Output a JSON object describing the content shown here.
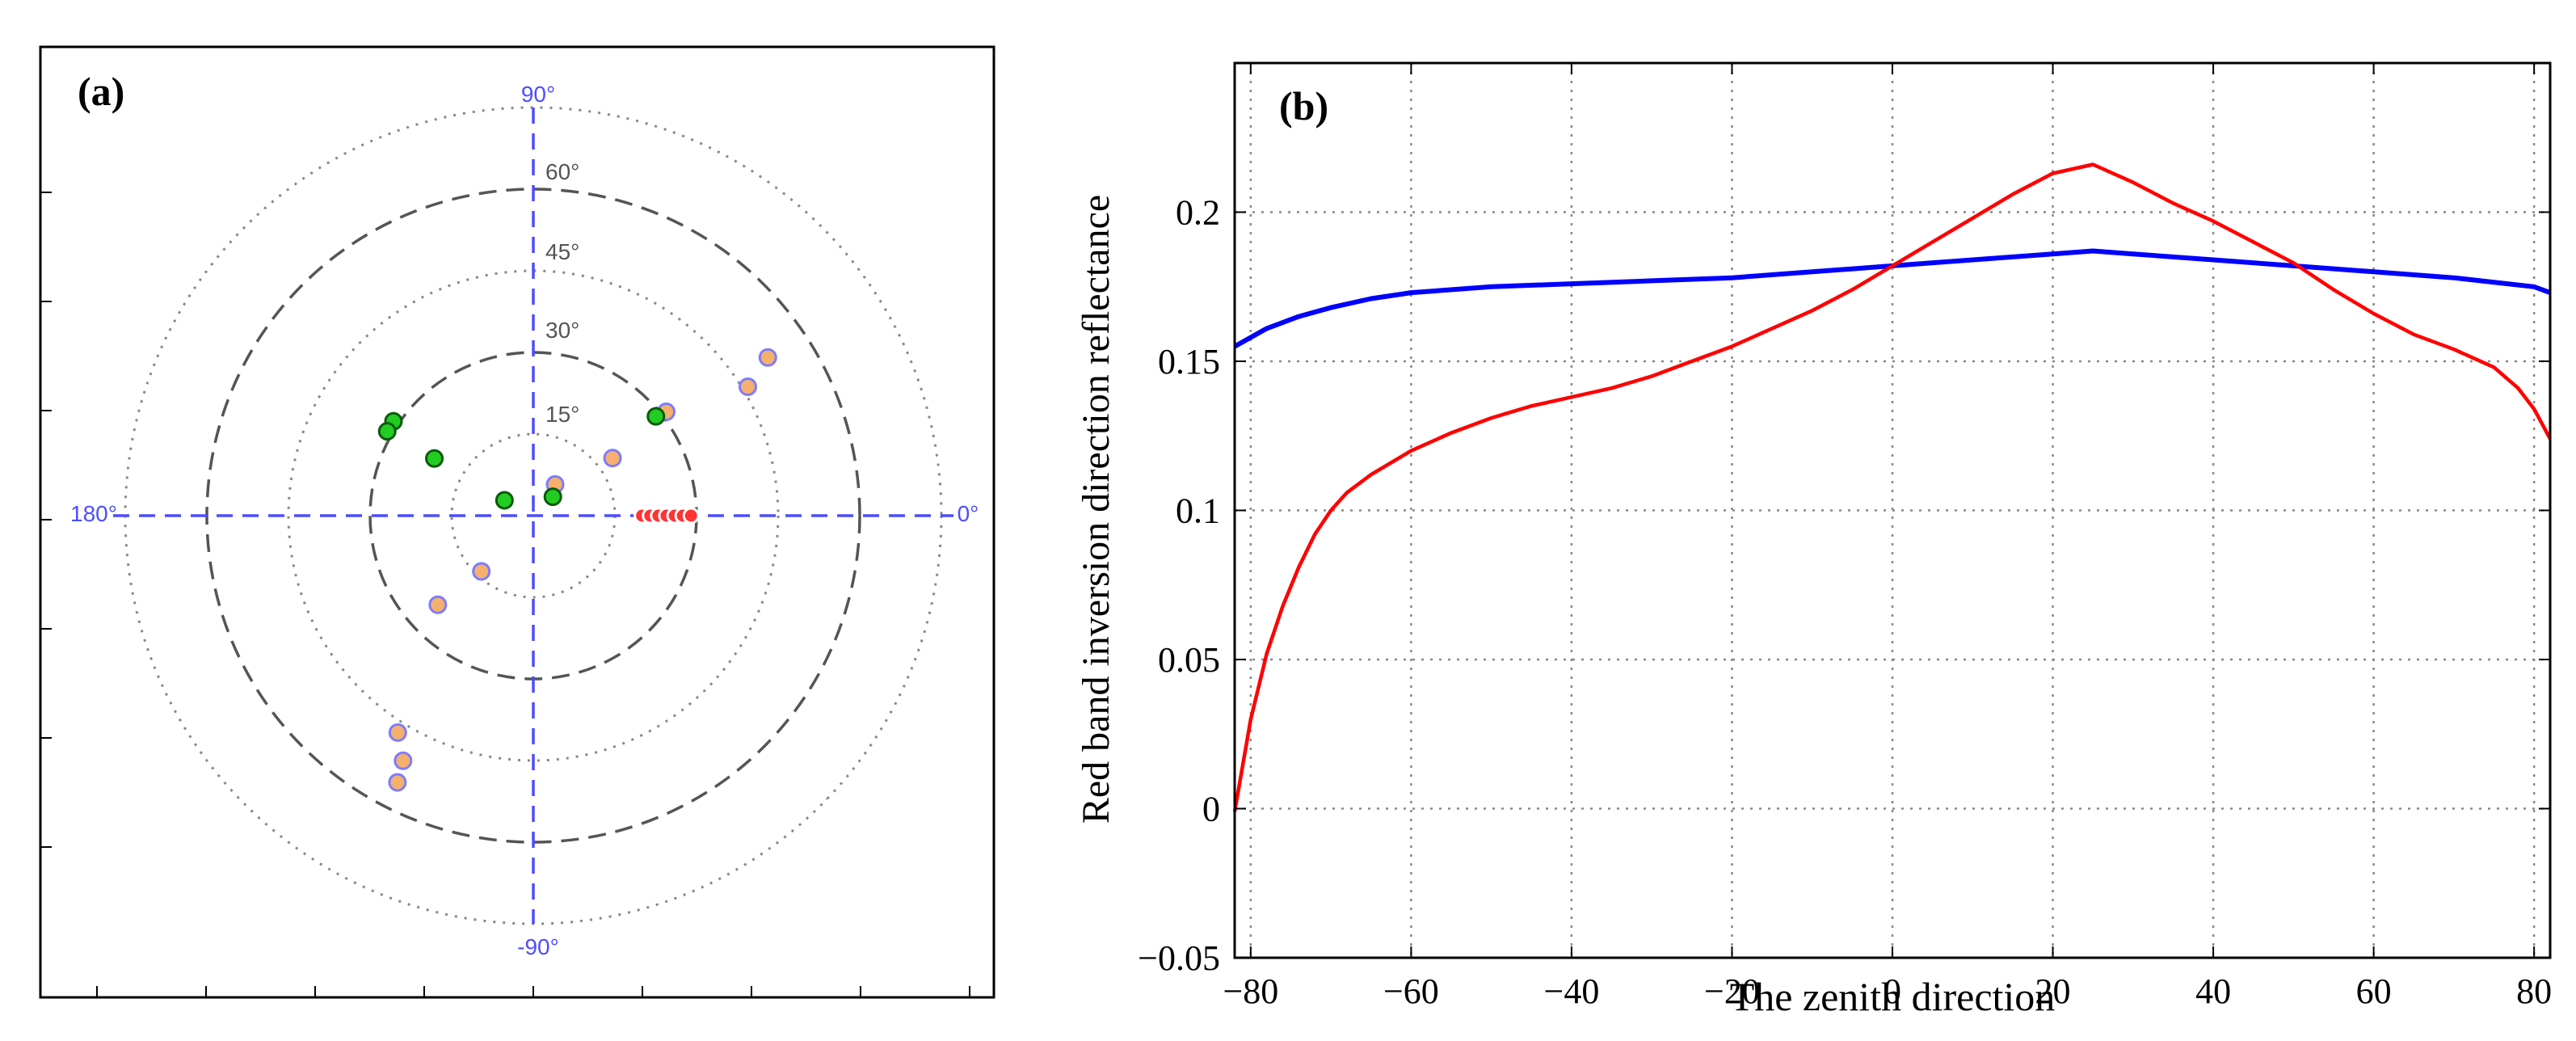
{
  "chart_data": [
    {
      "type": "scatter",
      "subtype": "polar",
      "panel_label": "(a)",
      "grid": true,
      "axis_labels": {
        "top": "90°",
        "left": "180°",
        "right": "0°",
        "bottom": "-90°"
      },
      "ring_labels": [
        {
          "text": "15°",
          "zenith": 15
        },
        {
          "text": "30°",
          "zenith": 30
        },
        {
          "text": "45°",
          "zenith": 45
        },
        {
          "text": "60°",
          "zenith": 60
        }
      ],
      "rings": [
        {
          "zenith": 15,
          "style": "dotted"
        },
        {
          "zenith": 30,
          "style": "dashed"
        },
        {
          "zenith": 45,
          "style": "dotted"
        },
        {
          "zenith": 60,
          "style": "dashed"
        },
        {
          "zenith": 75,
          "style": "dotted"
        }
      ],
      "colors": {
        "axis": "#4d4dff",
        "orange": "#f5b06e",
        "orange_edge": "#7c7cff",
        "green": "#22cc22",
        "red": "#ff3333"
      },
      "series": [
        {
          "name": "orange",
          "points": [
            {
              "azimuth": 34,
              "zenith": 52
            },
            {
              "azimuth": 31,
              "zenith": 46
            },
            {
              "azimuth": 38,
              "zenith": 31
            },
            {
              "azimuth": 36,
              "zenith": 18
            },
            {
              "azimuth": 55,
              "zenith": 7
            },
            {
              "azimuth": -133,
              "zenith": 14
            },
            {
              "azimuth": -137,
              "zenith": 24
            },
            {
              "azimuth": -122,
              "zenith": 47
            },
            {
              "azimuth": -118,
              "zenith": 51
            },
            {
              "azimuth": -117,
              "zenith": 55
            }
          ]
        },
        {
          "name": "green",
          "points": [
            {
              "azimuth": 146,
              "zenith": 31
            },
            {
              "azimuth": 150,
              "zenith": 31
            },
            {
              "azimuth": 150,
              "zenith": 21
            },
            {
              "azimuth": 152,
              "zenith": 6
            },
            {
              "azimuth": 44,
              "zenith": 5
            },
            {
              "azimuth": 39,
              "zenith": 29
            }
          ]
        },
        {
          "name": "red",
          "points": [
            {
              "azimuth": 0,
              "zenith": 20
            },
            {
              "azimuth": 0,
              "zenith": 21.5
            },
            {
              "azimuth": 0,
              "zenith": 23
            },
            {
              "azimuth": 0,
              "zenith": 24.5
            },
            {
              "azimuth": 0,
              "zenith": 26
            },
            {
              "azimuth": 0,
              "zenith": 27.5
            },
            {
              "azimuth": 0,
              "zenith": 29
            }
          ]
        }
      ]
    },
    {
      "type": "line",
      "panel_label": "(b)",
      "xlabel": "The zenith direction",
      "ylabel": "Red band inversion direction reflectance",
      "xlim": [
        -82,
        82
      ],
      "ylim": [
        -0.05,
        0.25
      ],
      "grid": true,
      "xticks": [
        -80,
        -60,
        -40,
        -20,
        0,
        20,
        40,
        60,
        80
      ],
      "xtick_labels": [
        "−80",
        "−60",
        "−40",
        "−20",
        "0",
        "20",
        "40",
        "60",
        "80"
      ],
      "yticks": [
        -0.05,
        0,
        0.05,
        0.1,
        0.15,
        0.2
      ],
      "ytick_labels": [
        "−0.05",
        "0",
        "0.05",
        "0.1",
        "0.15",
        "0.2"
      ],
      "series": [
        {
          "name": "blue",
          "color": "#0000ff",
          "x": [
            -82,
            -78,
            -74,
            -70,
            -65,
            -60,
            -50,
            -40,
            -30,
            -20,
            -10,
            0,
            10,
            20,
            25,
            30,
            40,
            50,
            60,
            70,
            80,
            82
          ],
          "y": [
            0.155,
            0.161,
            0.165,
            0.168,
            0.171,
            0.173,
            0.175,
            0.176,
            0.177,
            0.178,
            0.18,
            0.182,
            0.184,
            0.186,
            0.187,
            0.186,
            0.184,
            0.182,
            0.18,
            0.178,
            0.175,
            0.173
          ]
        },
        {
          "name": "red",
          "color": "#ff0000",
          "x": [
            -82,
            -80,
            -78,
            -76,
            -74,
            -72,
            -70,
            -68,
            -65,
            -60,
            -55,
            -50,
            -45,
            -40,
            -35,
            -30,
            -25,
            -20,
            -15,
            -10,
            -5,
            0,
            5,
            10,
            15,
            20,
            25,
            30,
            35,
            40,
            45,
            50,
            55,
            60,
            65,
            70,
            75,
            78,
            80,
            82
          ],
          "y": [
            -0.001,
            0.03,
            0.052,
            0.068,
            0.081,
            0.092,
            0.1,
            0.106,
            0.112,
            0.12,
            0.126,
            0.131,
            0.135,
            0.138,
            0.141,
            0.145,
            0.15,
            0.155,
            0.161,
            0.167,
            0.174,
            0.182,
            0.19,
            0.198,
            0.206,
            0.213,
            0.216,
            0.21,
            0.203,
            0.197,
            0.19,
            0.183,
            0.174,
            0.166,
            0.159,
            0.154,
            0.148,
            0.141,
            0.134,
            0.124
          ]
        }
      ]
    }
  ]
}
